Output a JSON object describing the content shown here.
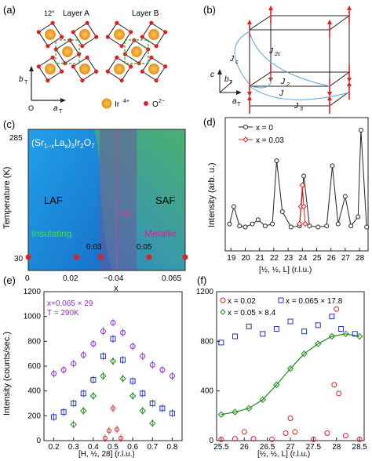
{
  "panels": {
    "a": {
      "letter": "(a)",
      "angle": "12°",
      "layer_a": "Layer A",
      "layer_b": "Layer B",
      "b_axis": "b",
      "b_sub": "T",
      "a_axis": "a",
      "a_sub": "T",
      "origin": "O",
      "legend_ir": "Ir",
      "legend_ir_sup": "4+",
      "legend_o": "O",
      "legend_o_sup": "2−",
      "colors": {
        "ir": "#f5a623",
        "ir_ring": "#e89a1e",
        "o": "#e02020",
        "bond": "#222222",
        "cell": "#2ca02c"
      }
    },
    "b": {
      "letter": "(b)",
      "jc": "J",
      "jc_sub": "c",
      "j2c": "J",
      "j2c_sub": "2c",
      "j2": "J",
      "j2_sub": "2",
      "j": "J",
      "j3": "J",
      "j3_sub": "3",
      "c_axis": "c",
      "b_axis": "b",
      "b_sub": "T",
      "a_axis": "a",
      "a_sub": "T"
    },
    "c": {
      "letter": "(c)",
      "formula": {
        "p1": "(Sr",
        "s1": "1−x",
        "p2": "La",
        "s2": "x",
        "p3": ")",
        "s3": "3",
        "p4": "Ir",
        "s4": "2",
        "p5": "O",
        "s5": "7"
      },
      "ylabel": "Temperature (K)",
      "xlabel": "x",
      "yticks": [
        "285",
        "30"
      ],
      "xticks": [
        "0",
        "0.02",
        "~0.04",
        "0.065"
      ],
      "region_laf": "LAF",
      "region_saf": "SAF",
      "imt": "IMT",
      "insulating": "Insulating",
      "metallic": "Metallic",
      "point_labels": [
        "0.03",
        "0.05"
      ],
      "point_x": [
        0,
        0.02,
        0.03,
        0.05,
        0.065
      ],
      "point_T": 30,
      "colors": {
        "laf": "#1a8ce0",
        "saf": "#3aa87a",
        "imt_band": "#6a5a9a",
        "boundary_line": "#e0408a",
        "insulating": "#44e044",
        "metallic": "#e02090"
      }
    },
    "d": {
      "letter": "(d)",
      "ylabel": "Intensity (arb. u.)",
      "xlabel": "[½, ½, L] (r.l.u.)",
      "xticks": [
        "19",
        "20",
        "21",
        "22",
        "23",
        "24",
        "25",
        "26",
        "27",
        "28"
      ],
      "legend": [
        "x = 0",
        "x = 0.03"
      ],
      "colors": {
        "x0": "#222222",
        "x003": "#e02020"
      }
    },
    "e": {
      "letter": "(e)",
      "ylabel": "Intensity (counts/sec.)",
      "xlabel": "[H, ½, 28] (r.l.u.)",
      "annotation1": "x=0.065 × 29",
      "annotation2": "T = 290K",
      "yticks": [
        "0",
        "200",
        "400",
        "600",
        "800",
        "1000",
        "1200"
      ],
      "xticks": [
        "0.2",
        "0.3",
        "0.4",
        "0.5",
        "0.6",
        "0.7",
        "0.8"
      ]
    },
    "f": {
      "letter": "(f)",
      "xlabel": "[½, ½, L] (r.l.u.)",
      "legend": [
        "x = 0.02",
        "x = 0.065 × 17.8",
        "x = 0.05 × 8.4"
      ],
      "yticks": [
        "0",
        "400",
        "800",
        "1200"
      ],
      "xticks": [
        "25.5",
        "26",
        "26.5",
        "27",
        "27.5",
        "28",
        "28.5"
      ],
      "colors": {
        "x002": "#e02020",
        "x0065": "#2030d0",
        "x005": "#1a8a1a",
        "fit": "#1a8a1a",
        "x0065_e": "#8a2be2"
      }
    }
  },
  "chart_data": [
    {
      "type": "scatter",
      "panel": "c",
      "title": "(Sr1−xLax)3Ir2O7",
      "xlabel": "x",
      "ylabel": "Temperature (K)",
      "series": [
        {
          "x": [
            0,
            0.02,
            0.03,
            0.05,
            0.065
          ],
          "y": [
            30,
            30,
            30,
            30,
            30
          ]
        }
      ]
    },
    {
      "type": "line",
      "panel": "d",
      "xlabel": "[½, ½, L] (r.l.u.)",
      "ylabel": "Intensity (arb. u.)",
      "xlim": [
        18.6,
        28.6
      ],
      "series": [
        {
          "name": "x = 0",
          "x": [
            18.9,
            19.2,
            19.6,
            20.0,
            20.5,
            20.9,
            21.4,
            21.9,
            22.2,
            22.6,
            23.2,
            23.8,
            24.1,
            24.5,
            25.1,
            25.7,
            26.1,
            26.5,
            27.0,
            27.4,
            27.9,
            28.1,
            28.5
          ],
          "y": [
            0.08,
            0.25,
            0.06,
            0.05,
            0.08,
            0.12,
            0.06,
            0.08,
            0.7,
            0.2,
            0.05,
            0.06,
            0.55,
            0.06,
            0.05,
            0.06,
            0.65,
            0.08,
            0.35,
            0.06,
            0.15,
            1.0,
            0.05
          ]
        },
        {
          "name": "x = 0.03",
          "x": [
            23.8,
            23.9,
            24.0,
            24.1,
            24.2
          ],
          "y": [
            0.08,
            0.25,
            0.46,
            0.25,
            0.08
          ]
        }
      ]
    },
    {
      "type": "scatter",
      "panel": "e",
      "xlabel": "[H, ½, 28] (r.l.u.)",
      "ylabel": "Intensity (counts/sec.)",
      "xlim": [
        0.15,
        0.85
      ],
      "ylim": [
        0,
        1200
      ],
      "series": [
        {
          "name": "x=0.065 × 29",
          "x": [
            0.2,
            0.25,
            0.3,
            0.35,
            0.4,
            0.45,
            0.5,
            0.55,
            0.6,
            0.65,
            0.7,
            0.75,
            0.8
          ],
          "y": [
            540,
            570,
            620,
            690,
            780,
            880,
            950,
            870,
            760,
            680,
            610,
            570,
            520
          ]
        },
        {
          "name": "blue",
          "x": [
            0.2,
            0.25,
            0.3,
            0.35,
            0.4,
            0.45,
            0.5,
            0.55,
            0.6,
            0.65,
            0.7,
            0.75,
            0.8
          ],
          "y": [
            190,
            230,
            300,
            380,
            490,
            680,
            820,
            650,
            480,
            380,
            300,
            260,
            220
          ]
        },
        {
          "name": "green",
          "x": [
            0.3,
            0.35,
            0.4,
            0.45,
            0.5,
            0.55,
            0.6,
            0.65,
            0.7
          ],
          "y": [
            130,
            240,
            360,
            520,
            640,
            500,
            360,
            240,
            140
          ]
        },
        {
          "name": "red",
          "x": [
            0.46,
            0.48,
            0.5,
            0.52,
            0.54
          ],
          "y": [
            20,
            80,
            260,
            90,
            20
          ]
        }
      ]
    },
    {
      "type": "scatter",
      "panel": "f",
      "xlabel": "[½, ½, L] (r.l.u.)",
      "xlim": [
        25.4,
        28.6
      ],
      "ylim": [
        0,
        1200
      ],
      "series": [
        {
          "name": "x = 0.02",
          "x": [
            25.5,
            25.8,
            26.0,
            26.2,
            26.6,
            26.9,
            27.0,
            27.1,
            27.5,
            27.8,
            27.95,
            28.0,
            28.05,
            28.2,
            28.5
          ],
          "y": [
            10,
            15,
            70,
            15,
            10,
            60,
            180,
            70,
            10,
            60,
            450,
            1060,
            380,
            40,
            10
          ]
        },
        {
          "name": "x = 0.065 × 17.8",
          "x": [
            25.5,
            25.8,
            26.1,
            26.4,
            26.7,
            27.0,
            27.3,
            27.6,
            27.9,
            28.1,
            28.4
          ],
          "y": [
            790,
            840,
            920,
            860,
            900,
            960,
            880,
            930,
            1000,
            900,
            860
          ]
        },
        {
          "name": "x = 0.05 × 8.4",
          "x": [
            25.5,
            25.8,
            26.1,
            26.4,
            26.7,
            27.0,
            27.3,
            27.6,
            27.9,
            28.2,
            28.5
          ],
          "y": [
            210,
            230,
            260,
            330,
            450,
            580,
            700,
            780,
            840,
            860,
            840
          ]
        }
      ]
    }
  ]
}
